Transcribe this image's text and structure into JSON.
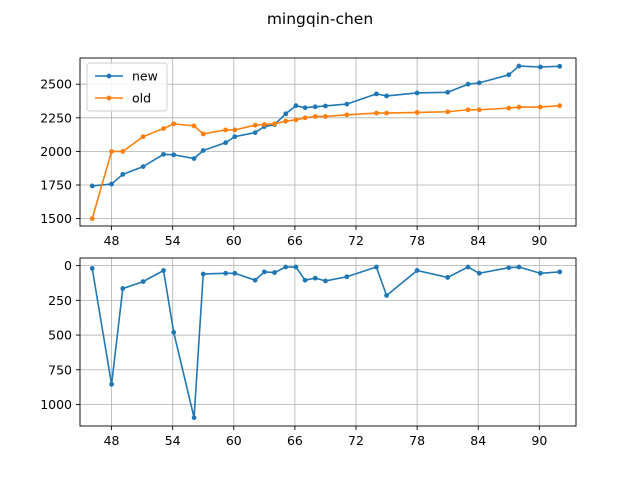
{
  "chart_data": [
    {
      "type": "line",
      "title": "mingqin-chen",
      "xlabel": "",
      "ylabel": "",
      "xlim": [
        44.9,
        93.6
      ],
      "ylim": [
        1445,
        2695
      ],
      "x_ticks": [
        48,
        54,
        60,
        66,
        72,
        78,
        84,
        90
      ],
      "x_tick_labels": [
        "48",
        "54",
        "60",
        "66",
        "72",
        "78",
        "84",
        "90"
      ],
      "y_ticks": [
        1500,
        1750,
        2000,
        2250,
        2500
      ],
      "y_tick_labels": [
        "1500",
        "1750",
        "2000",
        "2250",
        "2500"
      ],
      "grid": true,
      "legend": "top-left",
      "series": [
        {
          "name": "new",
          "color": "#1f77b4",
          "marker": "dot",
          "x": [
            46.1,
            48.0,
            49.1,
            51.1,
            53.1,
            54.1,
            56.1,
            57.0,
            59.2,
            60.1,
            62.1,
            63.0,
            64.0,
            65.1,
            66.1,
            67.0,
            68.0,
            69.0,
            71.1,
            74.0,
            75.0,
            78.0,
            81.0,
            83.0,
            84.1,
            87.0,
            88.0,
            90.1,
            92.0
          ],
          "y": [
            1743,
            1757,
            1829,
            1887,
            1978,
            1975,
            1947,
            2007,
            2065,
            2110,
            2140,
            2185,
            2200,
            2280,
            2340,
            2325,
            2332,
            2338,
            2352,
            2428,
            2413,
            2435,
            2440,
            2500,
            2510,
            2570,
            2635,
            2628,
            2633
          ]
        },
        {
          "name": "old",
          "color": "#ff7f0e",
          "marker": "dot",
          "x": [
            46.1,
            48.0,
            49.1,
            51.1,
            53.1,
            54.1,
            56.1,
            57.0,
            59.2,
            60.1,
            62.1,
            63.0,
            64.0,
            65.1,
            66.1,
            67.0,
            68.0,
            69.0,
            71.1,
            74.0,
            75.0,
            78.0,
            81.0,
            83.0,
            84.1,
            87.0,
            88.0,
            90.1,
            92.0
          ],
          "y": [
            1500,
            2000,
            2000,
            2110,
            2170,
            2205,
            2190,
            2130,
            2160,
            2160,
            2195,
            2200,
            2205,
            2225,
            2235,
            2250,
            2260,
            2260,
            2272,
            2285,
            2285,
            2290,
            2295,
            2310,
            2310,
            2322,
            2330,
            2330,
            2340
          ]
        }
      ]
    },
    {
      "type": "line",
      "xlabel": "",
      "ylabel": "",
      "xlim": [
        44.9,
        93.6
      ],
      "ylim": [
        1155,
        -55
      ],
      "y_inverted": true,
      "x_ticks": [
        48,
        54,
        60,
        66,
        72,
        78,
        84,
        90
      ],
      "x_tick_labels": [
        "48",
        "54",
        "60",
        "66",
        "72",
        "78",
        "84",
        "90"
      ],
      "y_ticks": [
        0,
        250,
        500,
        750,
        1000
      ],
      "y_tick_labels": [
        "0",
        "250",
        "500",
        "750",
        "1000"
      ],
      "grid": true,
      "series": [
        {
          "color": "#1f77b4",
          "marker": "dot",
          "x": [
            46.1,
            48.0,
            49.1,
            51.1,
            53.1,
            54.1,
            56.1,
            57.0,
            59.2,
            60.1,
            62.1,
            63.0,
            64.0,
            65.1,
            66.1,
            67.0,
            68.0,
            69.0,
            71.1,
            74.0,
            75.0,
            78.0,
            81.0,
            83.0,
            84.1,
            87.0,
            88.0,
            90.1,
            92.0
          ],
          "y": [
            20,
            855,
            165,
            115,
            35,
            480,
            1095,
            60,
            55,
            55,
            105,
            45,
            50,
            10,
            10,
            105,
            90,
            110,
            80,
            10,
            215,
            35,
            85,
            10,
            55,
            15,
            10,
            55,
            45
          ]
        }
      ]
    }
  ]
}
